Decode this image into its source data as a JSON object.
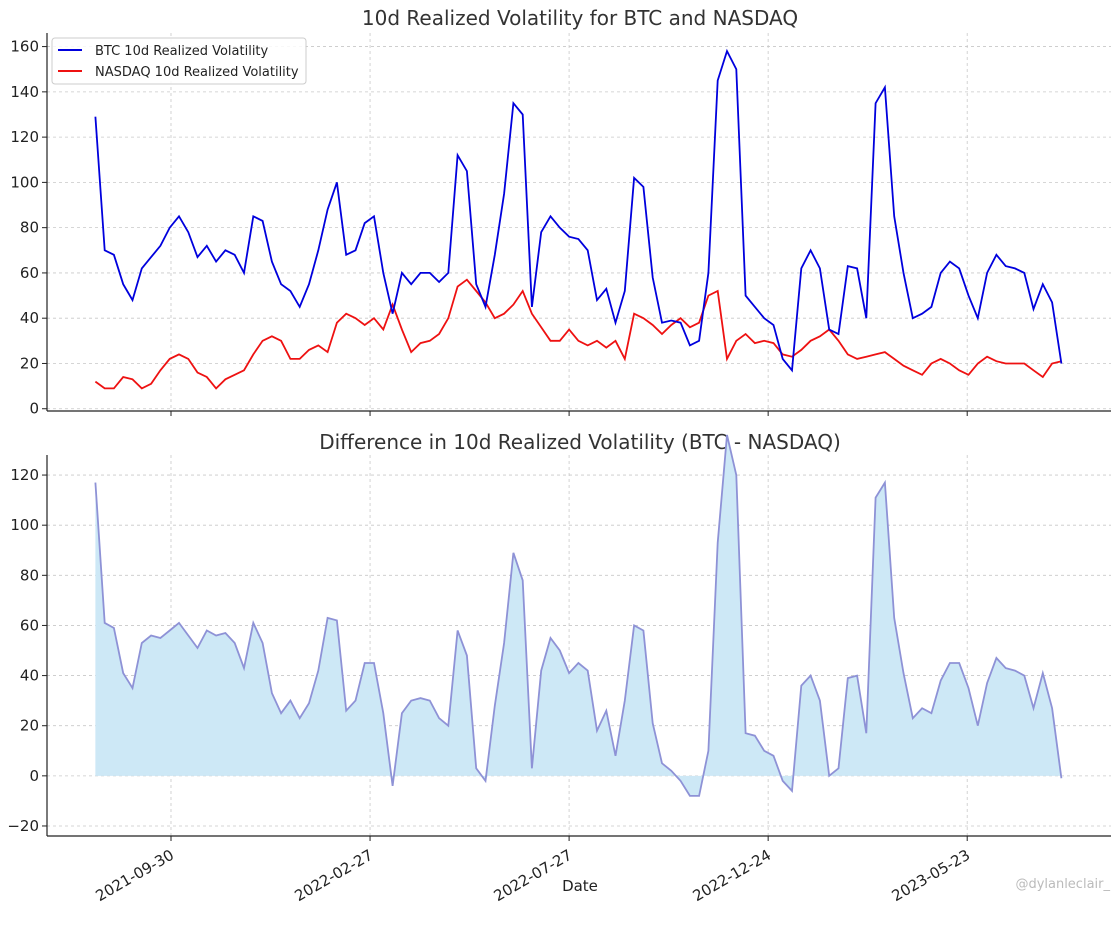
{
  "chart_data": [
    {
      "type": "line",
      "title": "10d Realized Volatility for BTC and NASDAQ",
      "xlabel": "",
      "ylabel": "",
      "start_date": "2021-08-04",
      "step_days": 7,
      "ylim": [
        -1,
        166
      ],
      "yticks": [
        0,
        20,
        40,
        60,
        80,
        100,
        120,
        140,
        160
      ],
      "grid": true,
      "legend_position": "top-left",
      "series": [
        {
          "name": "BTC 10d Realized Volatility",
          "color": "#0000dd",
          "values": [
            129,
            70,
            68,
            55,
            48,
            62,
            67,
            72,
            80,
            85,
            78,
            67,
            72,
            65,
            70,
            68,
            60,
            85,
            83,
            65,
            55,
            52,
            45,
            55,
            70,
            88,
            100,
            68,
            70,
            82,
            85,
            60,
            42,
            60,
            55,
            60,
            60,
            56,
            60,
            112,
            105,
            55,
            45,
            68,
            95,
            135,
            130,
            45,
            78,
            85,
            80,
            76,
            75,
            70,
            48,
            53,
            38,
            52,
            102,
            98,
            58,
            38,
            39,
            38,
            28,
            30,
            60,
            145,
            158,
            150,
            50,
            45,
            40,
            37,
            22,
            17,
            62,
            70,
            62,
            35,
            33,
            63,
            62,
            40,
            135,
            142,
            85,
            60,
            40,
            42,
            45,
            60,
            65,
            62,
            50,
            40,
            60,
            68,
            63,
            62,
            60,
            44,
            55,
            47,
            20
          ]
        },
        {
          "name": "NASDAQ 10d Realized Volatility",
          "color": "#ee1111",
          "values": [
            12,
            9,
            9,
            14,
            13,
            9,
            11,
            17,
            22,
            24,
            22,
            16,
            14,
            9,
            13,
            15,
            17,
            24,
            30,
            32,
            30,
            22,
            22,
            26,
            28,
            25,
            38,
            42,
            40,
            37,
            40,
            35,
            46,
            35,
            25,
            29,
            30,
            33,
            40,
            54,
            57,
            52,
            47,
            40,
            42,
            46,
            52,
            42,
            36,
            30,
            30,
            35,
            30,
            28,
            30,
            27,
            30,
            22,
            42,
            40,
            37,
            33,
            37,
            40,
            36,
            38,
            50,
            52,
            22,
            30,
            33,
            29,
            30,
            29,
            24,
            23,
            26,
            30,
            32,
            35,
            30,
            24,
            22,
            23,
            24,
            25,
            22,
            19,
            17,
            15,
            20,
            22,
            20,
            17,
            15,
            20,
            23,
            21,
            20,
            20,
            20,
            17,
            14,
            20,
            21
          ]
        }
      ]
    },
    {
      "type": "area",
      "title": "Difference in 10d Realized Volatility (BTC - NASDAQ)",
      "xlabel": "Date",
      "ylabel": "",
      "derived_from": "BTC - NASDAQ",
      "ylim": [
        -24,
        128
      ],
      "yticks": [
        -20,
        0,
        20,
        40,
        60,
        80,
        100,
        120
      ],
      "grid": true,
      "line_color": "#8e92d6",
      "fill_color": "#cde8f6",
      "xticks": [
        "2021-09-30",
        "2022-02-27",
        "2022-07-27",
        "2022-12-24",
        "2023-05-23"
      ]
    }
  ],
  "watermark": "@dylanleclair_"
}
